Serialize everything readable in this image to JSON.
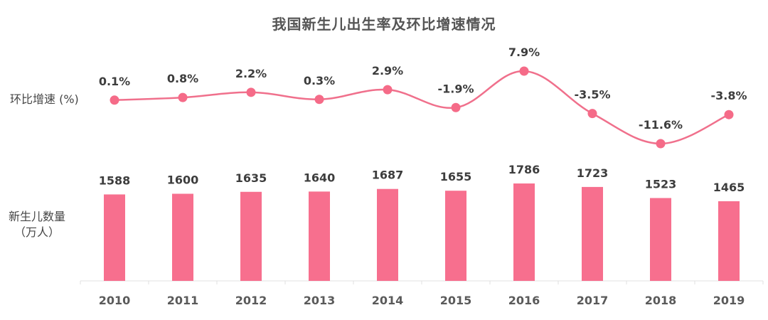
{
  "chart_data": {
    "type": "bar+line",
    "title": "我国新生儿出生率及环比增速情况",
    "categories": [
      "2010",
      "2011",
      "2012",
      "2013",
      "2014",
      "2015",
      "2016",
      "2017",
      "2018",
      "2019"
    ],
    "series": [
      {
        "name": "环比增速 (%)",
        "type": "line",
        "values": [
          0.1,
          0.8,
          2.2,
          0.3,
          2.9,
          -1.9,
          7.9,
          -3.5,
          -11.6,
          -3.8
        ],
        "labels": [
          "0.1%",
          "0.8%",
          "2.2%",
          "0.3%",
          "2.9%",
          "-1.9%",
          "7.9%",
          "-3.5%",
          "-11.6%",
          "-3.8%"
        ]
      },
      {
        "name": "新生儿数量（万人）",
        "type": "bar",
        "values": [
          1588,
          1600,
          1635,
          1640,
          1687,
          1655,
          1786,
          1723,
          1523,
          1465
        ],
        "labels": [
          "1588",
          "1600",
          "1635",
          "1640",
          "1687",
          "1655",
          "1786",
          "1723",
          "1523",
          "1465"
        ]
      }
    ],
    "xlabel": "",
    "ylabel": "",
    "legend": "row labels on left",
    "grid": false,
    "colors": {
      "bar": "#f76f8e",
      "line": "#f0708c",
      "marker": "#f56b88"
    }
  },
  "labels": {
    "line_row": "环比增速 (%)",
    "bar_row_line1": "新生儿数量",
    "bar_row_line2": "（万人）"
  }
}
